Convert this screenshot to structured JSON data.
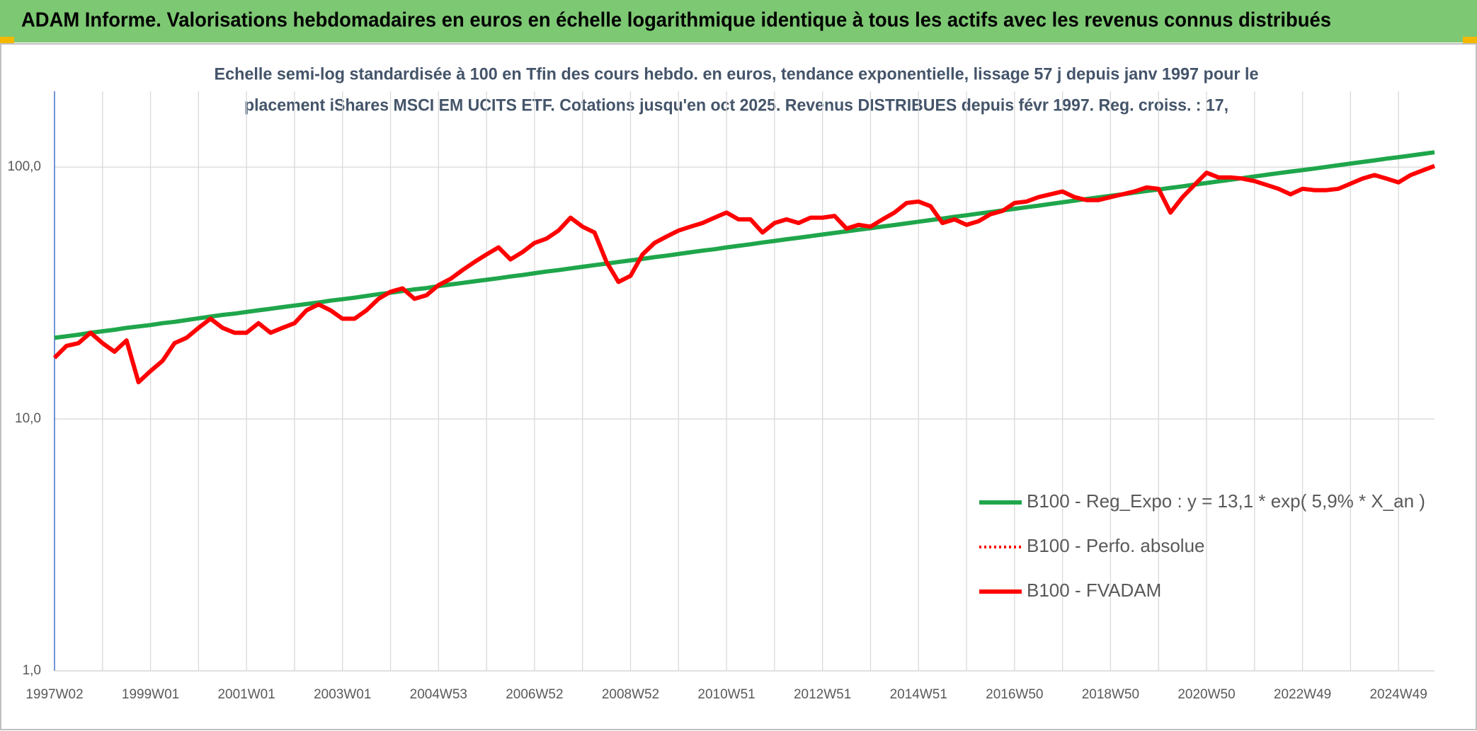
{
  "chart_data": {
    "type": "line",
    "title": "ADAM Informe. Valorisations hebdomadaires en euros en échelle logarithmique identique à tous les actifs avec les revenus connus distribués",
    "subtitle": [
      "Echelle semi-log standardisée à 100 en Tfin des cours hebdo. en euros, tendance exponentielle, lissage 57 j depuis janv 1997 pour le",
      "placement iShares MSCI EM UCITS ETF. Cotations jusqu'en oct 2025. Revenus DISTRIBUES depuis févr 1997. Reg. croiss. : 17,"
    ],
    "categories": [
      "1997W02",
      null,
      null,
      null,
      null,
      null,
      null,
      null,
      "1999W01",
      null,
      null,
      null,
      null,
      null,
      null,
      null,
      "2001W01",
      null,
      null,
      null,
      null,
      null,
      null,
      null,
      "2003W01",
      null,
      null,
      null,
      null,
      null,
      null,
      null,
      "2004W53",
      null,
      null,
      null,
      null,
      null,
      null,
      null,
      "2006W52",
      null,
      null,
      null,
      null,
      null,
      null,
      null,
      "2008W52",
      null,
      null,
      null,
      null,
      null,
      null,
      null,
      "2010W51",
      null,
      null,
      null,
      null,
      null,
      null,
      null,
      "2012W51",
      null,
      null,
      null,
      null,
      null,
      null,
      null,
      "2014W51",
      null,
      null,
      null,
      null,
      null,
      null,
      null,
      "2016W50",
      null,
      null,
      null,
      null,
      null,
      null,
      null,
      "2018W50",
      null,
      null,
      null,
      null,
      null,
      null,
      null,
      "2020W50",
      null,
      null,
      null,
      null,
      null,
      null,
      null,
      "2022W49",
      null,
      null,
      null,
      null,
      null,
      null,
      null,
      "2024W49",
      null,
      null,
      null
    ],
    "series": [
      {
        "name": "B100 - Reg_Expo : y = 13,1 * exp( 5,9% *  X_an )",
        "color": "#1fa64b",
        "style": "solid",
        "values": [
          21.0,
          21.3,
          21.6,
          22.0,
          22.3,
          22.6,
          23.0,
          23.3,
          23.6,
          24.0,
          24.3,
          24.7,
          25.1,
          25.5,
          25.9,
          26.2,
          26.6,
          27.0,
          27.4,
          27.8,
          28.2,
          28.6,
          29.0,
          29.5,
          29.9,
          30.3,
          30.8,
          31.3,
          31.7,
          32.2,
          32.7,
          33.1,
          33.7,
          34.2,
          34.7,
          35.2,
          35.7,
          36.2,
          36.8,
          37.3,
          37.9,
          38.5,
          39.0,
          39.6,
          40.2,
          40.8,
          41.4,
          42.0,
          42.6,
          43.2,
          43.9,
          44.5,
          45.2,
          45.9,
          46.6,
          47.2,
          48.0,
          48.7,
          49.4,
          50.2,
          50.9,
          51.7,
          52.4,
          53.2,
          54.0,
          54.8,
          55.6,
          56.4,
          57.2,
          58.1,
          58.9,
          59.8,
          60.7,
          61.6,
          62.5,
          63.5,
          64.4,
          65.4,
          66.3,
          67.3,
          68.3,
          69.3,
          70.3,
          71.4,
          72.5,
          73.6,
          74.7,
          75.8,
          76.9,
          78.0,
          79.2,
          80.4,
          81.5,
          82.7,
          83.9,
          85.2,
          86.5,
          87.8,
          89.1,
          90.4,
          91.8,
          93.2,
          94.6,
          96.0,
          97.3,
          98.7,
          100.2,
          101.7,
          103.3,
          104.8,
          106.4,
          108.0,
          109.5,
          111.1,
          112.8,
          114.5
        ]
      },
      {
        "name": "B100 - Perfo. absolue",
        "color": "#ff0000",
        "style": "dotted",
        "values": [
          17.5,
          19.5,
          20,
          22,
          20,
          18.5,
          20.5,
          14,
          15.5,
          17,
          20,
          21,
          23,
          25,
          23,
          22,
          22,
          24,
          22,
          23,
          24,
          27,
          28.5,
          27,
          25,
          25,
          27,
          30,
          32,
          33,
          30,
          31,
          34,
          36,
          39,
          42,
          45,
          48,
          43,
          46,
          50,
          52,
          56,
          63,
          58,
          55,
          42,
          35,
          37,
          45,
          50,
          53,
          56,
          58,
          60,
          63,
          66,
          62,
          62,
          55,
          60,
          62,
          60,
          63,
          63,
          64,
          57,
          59,
          58,
          62,
          66,
          72,
          73,
          70,
          60,
          62,
          59,
          61,
          65,
          67,
          72,
          73,
          76,
          78,
          80,
          76,
          74,
          74,
          76,
          78,
          80,
          83,
          82,
          66,
          76,
          85,
          95,
          91,
          91,
          90,
          88,
          85,
          82,
          78,
          82,
          81,
          81,
          82,
          86,
          90,
          93,
          90,
          87,
          93,
          97,
          101
        ]
      },
      {
        "name": "B100 - FVADAM",
        "color": "#ff0000",
        "style": "solid",
        "values": [
          17.5,
          19.5,
          20,
          22,
          20,
          18.5,
          20.5,
          14,
          15.5,
          17,
          20,
          21,
          23,
          25,
          23,
          22,
          22,
          24,
          22,
          23,
          24,
          27,
          28.5,
          27,
          25,
          25,
          27,
          30,
          32,
          33,
          30,
          31,
          34,
          36,
          39,
          42,
          45,
          48,
          43,
          46,
          50,
          52,
          56,
          63,
          58,
          55,
          42,
          35,
          37,
          45,
          50,
          53,
          56,
          58,
          60,
          63,
          66,
          62,
          62,
          55,
          60,
          62,
          60,
          63,
          63,
          64,
          57,
          59,
          58,
          62,
          66,
          72,
          73,
          70,
          60,
          62,
          59,
          61,
          65,
          67,
          72,
          73,
          76,
          78,
          80,
          76,
          74,
          74,
          76,
          78,
          80,
          83,
          82,
          66,
          76,
          85,
          95,
          91,
          91,
          90,
          88,
          85,
          82,
          78,
          82,
          81,
          81,
          82,
          86,
          90,
          93,
          90,
          87,
          93,
          97,
          101
        ]
      }
    ],
    "ylim": [
      1,
      200
    ],
    "yticks": [
      {
        "value": 1,
        "label": "1,0"
      },
      {
        "value": 10,
        "label": "10,0"
      },
      {
        "value": 100,
        "label": "100,0"
      }
    ],
    "log_scale": true,
    "grid": true,
    "legend": "right"
  }
}
